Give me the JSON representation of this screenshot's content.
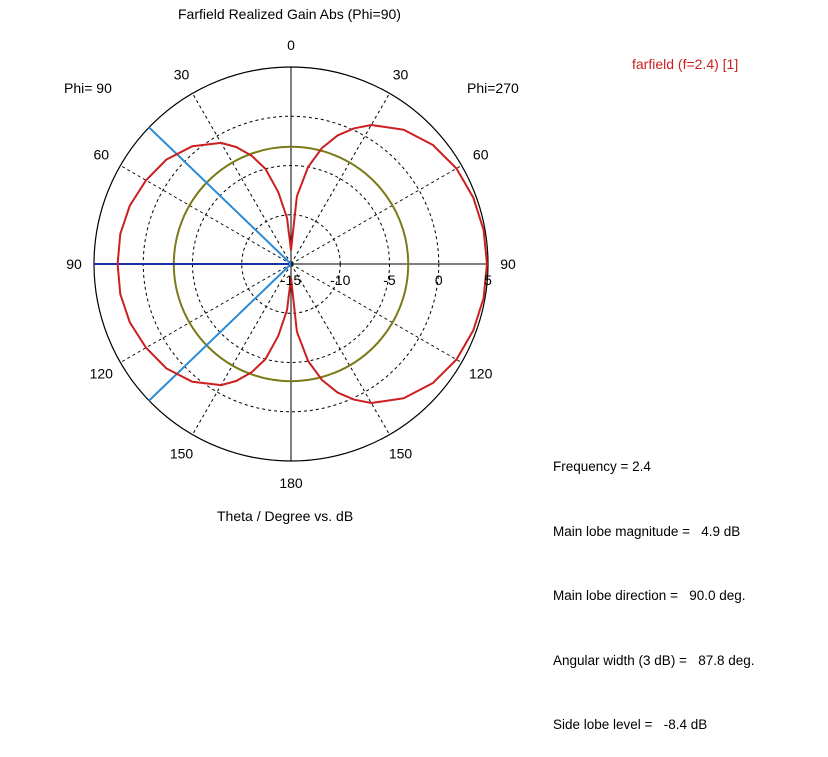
{
  "chart_data": {
    "type": "polar-line",
    "title": "Farfield Realized Gain Abs (Phi=90)",
    "xlabel": "Theta / Degree vs. dB",
    "left_half_label": "Phi= 90",
    "right_half_label": "Phi=270",
    "angle_unit": "deg",
    "angle_ticks": [
      0,
      30,
      60,
      90,
      120,
      150,
      180
    ],
    "angle_tick_labels": [
      "0",
      "30",
      "60",
      "90",
      "120",
      "150",
      "180",
      "150",
      "120",
      "90",
      "60",
      "30"
    ],
    "radial_range_db": [
      -15,
      5
    ],
    "radial_ticks": [
      -15,
      -10,
      -5,
      0,
      5
    ],
    "radial_tick_labels": [
      "-15",
      "-10",
      "-5",
      "0",
      "5"
    ],
    "grid": true,
    "legend": {
      "placement": "top-right",
      "entries": [
        "farfield (f=2.4) [1]"
      ]
    },
    "series": [
      {
        "name": "farfield (f=2.4) [1]",
        "color": "#cc1f1f",
        "theta_phi270_deg": [
          0,
          5,
          10,
          15,
          20,
          25,
          30,
          40,
          50,
          60,
          70,
          80,
          90,
          100,
          110,
          120,
          130,
          140,
          150,
          155,
          160,
          165,
          170,
          175,
          180
        ],
        "gain_phi270_db": [
          -13.6,
          -8.1,
          -5.0,
          -2.8,
          -1.1,
          0.2,
          1.3,
          2.8,
          3.8,
          4.4,
          4.7,
          4.85,
          4.9,
          4.85,
          4.7,
          4.4,
          3.8,
          2.8,
          1.3,
          0.2,
          -1.1,
          -2.8,
          -5.0,
          -8.1,
          -13.6
        ],
        "theta_phi90_deg": [
          0,
          5,
          10,
          15,
          20,
          25,
          30,
          40,
          50,
          60,
          70,
          80,
          90,
          100,
          110,
          120,
          130,
          140,
          150,
          155,
          160,
          165,
          170,
          175,
          180
        ],
        "gain_phi90_db": [
          -13.6,
          -10.3,
          -7.6,
          -5.0,
          -3.3,
          -1.9,
          -0.8,
          0.6,
          1.5,
          2.0,
          2.4,
          2.6,
          2.6,
          2.6,
          2.4,
          2.0,
          1.5,
          0.6,
          -0.8,
          -1.9,
          -3.3,
          -5.0,
          -7.6,
          -10.3,
          -13.6
        ]
      }
    ],
    "reference_lines": [
      {
        "type": "circle",
        "color": "#7a7a1a",
        "value_db": -3.1
      },
      {
        "type": "radial",
        "color": "#1a2fa0",
        "side": "phi90",
        "theta_deg": 90
      },
      {
        "type": "radial",
        "color": "#2a8ad4",
        "side": "phi90",
        "theta_deg": 46.1
      },
      {
        "type": "radial",
        "color": "#2a8ad4",
        "side": "phi90",
        "theta_deg": 133.9
      }
    ]
  },
  "info": {
    "frequency": "Frequency = 2.4",
    "main_lobe_magnitude": "Main lobe magnitude =   4.9 dB",
    "main_lobe_direction": "Main lobe direction =   90.0 deg.",
    "angular_width": "Angular width (3 dB) =   87.8 deg.",
    "side_lobe_level": "Side lobe level =   -8.4 dB"
  }
}
